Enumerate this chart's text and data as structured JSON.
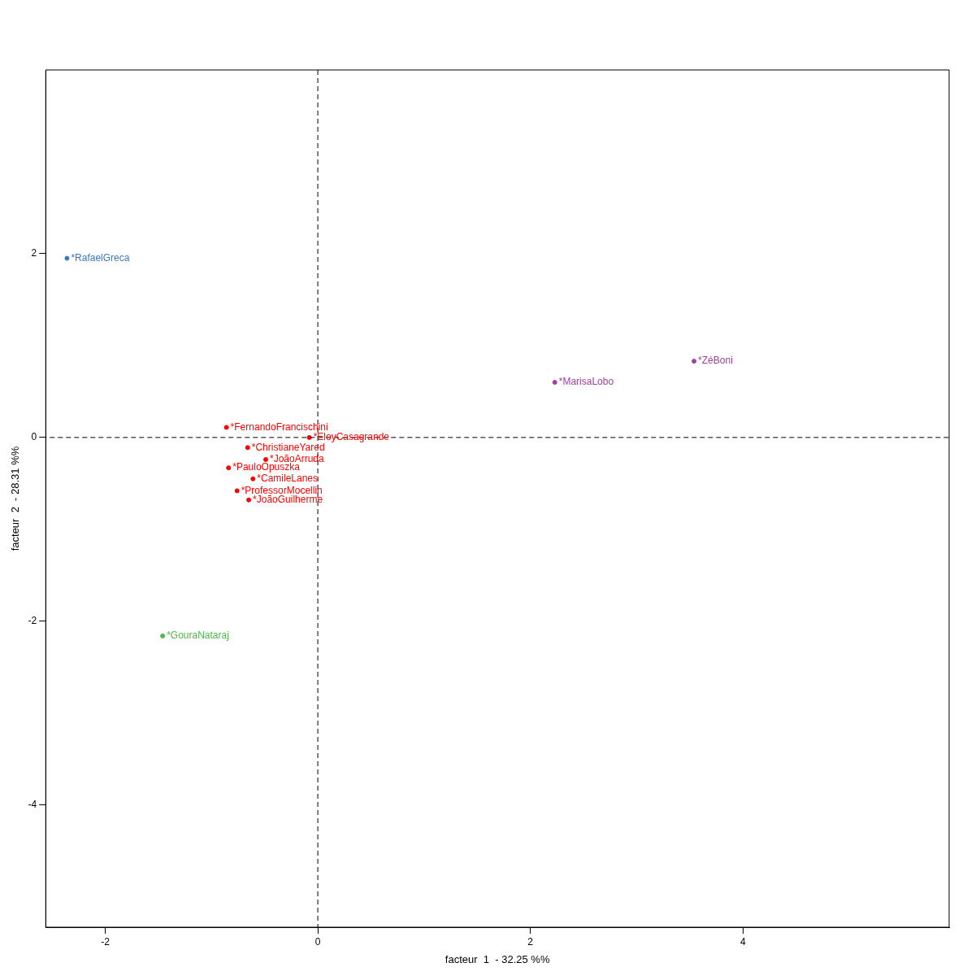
{
  "chart_data": {
    "type": "scatter",
    "xlabel": "facteur  1  - 32.25 %%",
    "ylabel": "facteur  2  - 28.31 %%",
    "xlim": [
      -2.56,
      5.94
    ],
    "ylim": [
      -5.33,
      4.0
    ],
    "xticks": [
      -2,
      0,
      2,
      4
    ],
    "yticks": [
      -4,
      -2,
      0,
      2
    ],
    "grid": false,
    "legend": false,
    "marker": "circle",
    "ref_lines": [
      {
        "axis": "x",
        "value": 0,
        "label": null,
        "line_style": "dashed",
        "color": "#000000"
      },
      {
        "axis": "y",
        "value": 0,
        "label": null,
        "line_style": "dashed",
        "color": "#000000"
      }
    ],
    "series": [
      {
        "name": "*RafaelGreca",
        "color": "#3a78c6",
        "x": [
          -2.36
        ],
        "values": [
          1.95
        ]
      },
      {
        "name": "*MarisaLobo",
        "color": "#a040a0",
        "x": [
          2.23
        ],
        "values": [
          0.6
        ]
      },
      {
        "name": "*ZéBoni",
        "color": "#a040a0",
        "x": [
          3.54
        ],
        "values": [
          0.83
        ]
      },
      {
        "name": "*GouraNataraj",
        "color": "#4db848",
        "x": [
          -1.46
        ],
        "values": [
          -2.16
        ]
      },
      {
        "name": "*FernandoFrancischini",
        "color": "#ff0000",
        "x": [
          -0.86
        ],
        "values": [
          0.11
        ]
      },
      {
        "name": "*EloyCasagrande",
        "color": "#ff0000",
        "x": [
          -0.08
        ],
        "values": [
          0.0
        ]
      },
      {
        "name": "*ChristianeYared",
        "color": "#ff0000",
        "x": [
          -0.66
        ],
        "values": [
          -0.11
        ]
      },
      {
        "name": "*JoãoArruda",
        "color": "#ff0000",
        "x": [
          -0.49
        ],
        "values": [
          -0.24
        ]
      },
      {
        "name": "*PauloOpuszka",
        "color": "#ff0000",
        "x": [
          -0.84
        ],
        "values": [
          -0.33
        ]
      },
      {
        "name": "*CamileLanes",
        "color": "#ff0000",
        "x": [
          -0.61
        ],
        "values": [
          -0.45
        ]
      },
      {
        "name": "*ProfessorMocellin",
        "color": "#ff0000",
        "x": [
          -0.76
        ],
        "values": [
          -0.58
        ]
      },
      {
        "name": "*JoãoGuilherme",
        "color": "#ff0000",
        "x": [
          -0.65
        ],
        "values": [
          -0.68
        ]
      }
    ]
  }
}
